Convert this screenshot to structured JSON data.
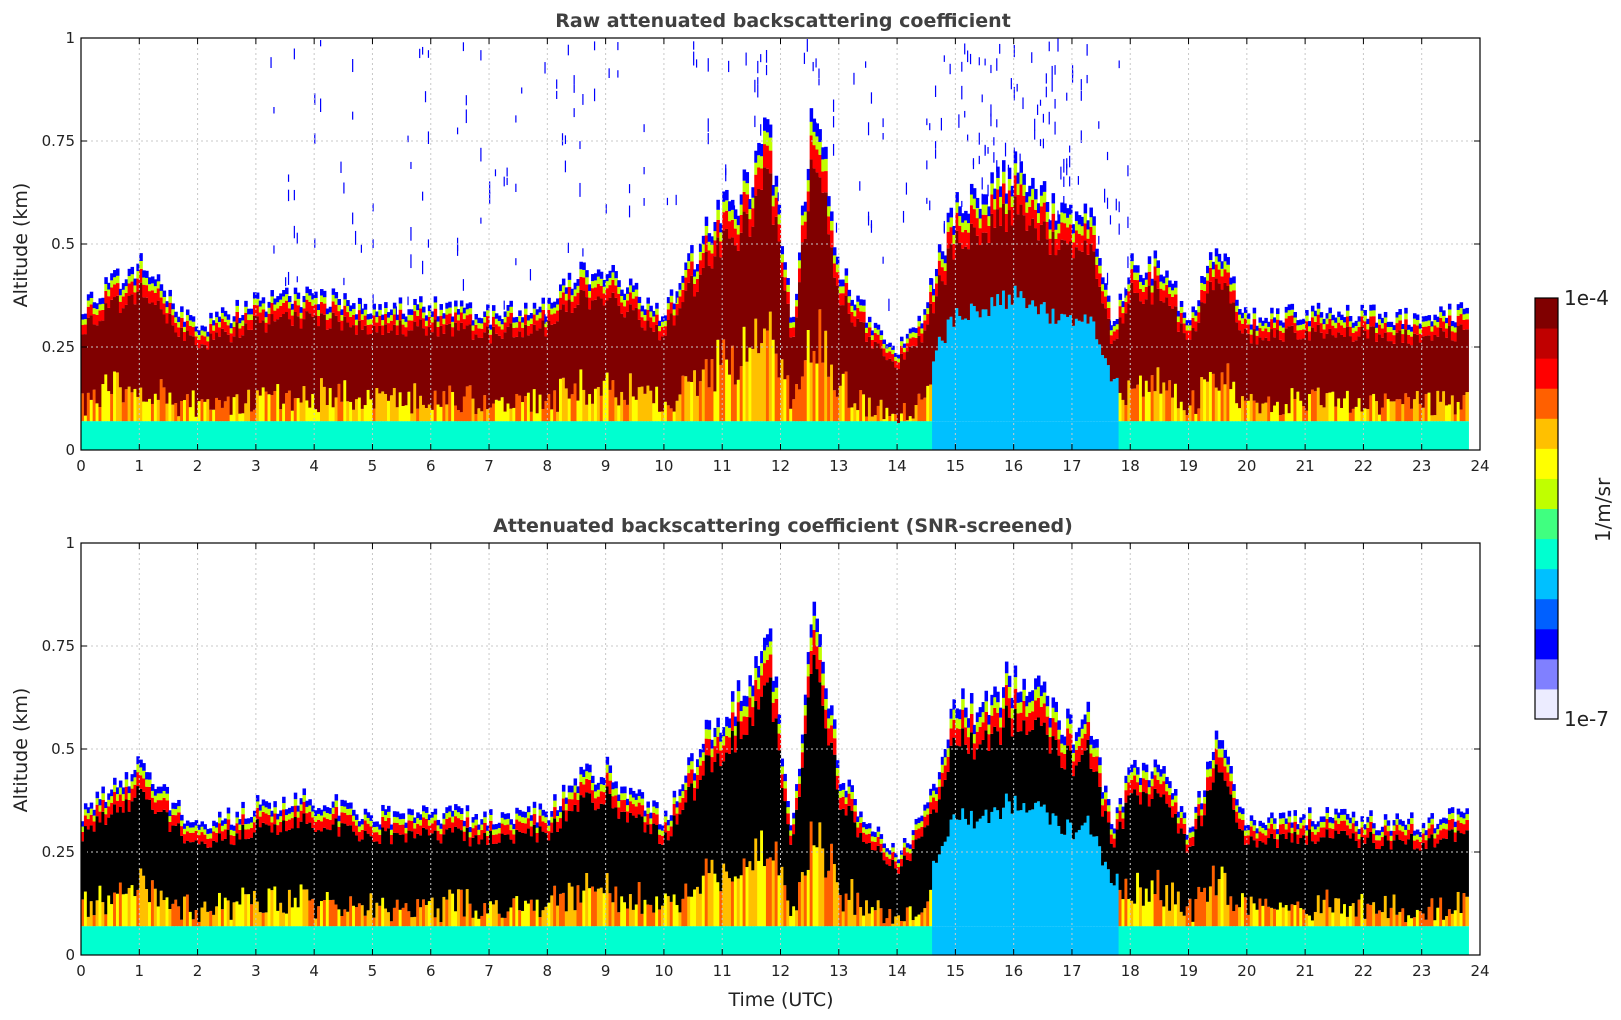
{
  "chart_data": [
    {
      "type": "heatmap",
      "id": "raw",
      "title": "Raw attenuated backscattering coefficient",
      "xlabel": "",
      "ylabel": "Altitude (km)",
      "xlim": [
        0,
        24
      ],
      "ylim": [
        0,
        1
      ],
      "xticks": [
        "0",
        "1",
        "2",
        "3",
        "4",
        "5",
        "6",
        "7",
        "8",
        "9",
        "10",
        "11",
        "12",
        "13",
        "14",
        "15",
        "16",
        "17",
        "18",
        "19",
        "20",
        "21",
        "22",
        "23",
        "24"
      ],
      "yticks": [
        "0",
        "0.25",
        "0.5",
        "0.75",
        "1"
      ],
      "grid": true,
      "data_end_hour": 23.8,
      "boundary_layer_top_km": {
        "hours": [
          0,
          1,
          2,
          3,
          4,
          5,
          6,
          7,
          8,
          8.5,
          9,
          10,
          10.8,
          11.5,
          11.8,
          12.2,
          12.6,
          13,
          13.5,
          14,
          14.5,
          15,
          15.4,
          16,
          16.5,
          17,
          17.3,
          17.7,
          18,
          18.6,
          19,
          19.5,
          20,
          21,
          22,
          23,
          23.8
        ],
        "top_km": [
          0.35,
          0.45,
          0.3,
          0.36,
          0.38,
          0.34,
          0.35,
          0.33,
          0.35,
          0.42,
          0.45,
          0.33,
          0.55,
          0.65,
          0.78,
          0.3,
          0.88,
          0.45,
          0.32,
          0.24,
          0.35,
          0.6,
          0.6,
          0.68,
          0.62,
          0.55,
          0.58,
          0.3,
          0.45,
          0.45,
          0.3,
          0.52,
          0.32,
          0.34,
          0.33,
          0.32,
          0.34
        ]
      },
      "note_colour_scale": "log10"
    },
    {
      "type": "heatmap",
      "id": "screened",
      "title": "Attenuated backscattering coefficient (SNR-screened)",
      "xlabel": "Time (UTC)",
      "ylabel": "Altitude (km)",
      "xlim": [
        0,
        24
      ],
      "ylim": [
        0,
        1
      ],
      "xticks": [
        "0",
        "1",
        "2",
        "3",
        "4",
        "5",
        "6",
        "7",
        "8",
        "9",
        "10",
        "11",
        "12",
        "13",
        "14",
        "15",
        "16",
        "17",
        "18",
        "19",
        "20",
        "21",
        "22",
        "23",
        "24"
      ],
      "yticks": [
        "0",
        "0.25",
        "0.5",
        "0.75",
        "1"
      ],
      "grid": true,
      "saturated_color": "#000000"
    }
  ],
  "colorbar": {
    "label": "1/m/sr",
    "max_label": "1e-4",
    "min_label": "1e-7",
    "scale": "log",
    "colors": [
      "#ececff",
      "#8080ff",
      "#0000ff",
      "#0060ff",
      "#00c0ff",
      "#00ffd0",
      "#40ff80",
      "#c0ff00",
      "#ffff00",
      "#ffc000",
      "#ff6000",
      "#ff0000",
      "#c00000",
      "#800000"
    ]
  }
}
